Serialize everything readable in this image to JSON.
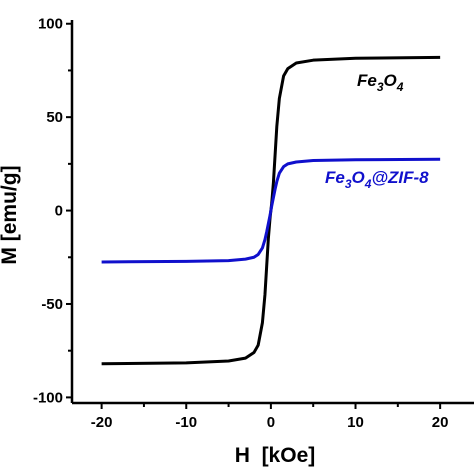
{
  "chart_data": {
    "type": "line",
    "xlabel": "H  [kOe]",
    "ylabel": "M [emu/g]",
    "xlim": [
      -23.5,
      24
    ],
    "ylim": [
      -103,
      102
    ],
    "xticks": [
      -20,
      -10,
      0,
      10,
      20
    ],
    "yticks": [
      -100,
      -50,
      0,
      50,
      100
    ],
    "xtick_labels": [
      "-20",
      "-10",
      "0",
      "10",
      "20"
    ],
    "ytick_labels": [
      "-100",
      "-50",
      "0",
      "50",
      "100"
    ],
    "grid": false,
    "series": [
      {
        "name": "Fe3O4",
        "color": "#000000",
        "x": [
          -20,
          -10,
          -5,
          -3,
          -2,
          -1.5,
          -1,
          -0.7,
          -0.5,
          -0.3,
          -0.1,
          0,
          0.1,
          0.3,
          0.5,
          0.7,
          1,
          1.5,
          2,
          3,
          5,
          10,
          20
        ],
        "y": [
          -82,
          -81.5,
          -80.5,
          -79,
          -76,
          -72,
          -60,
          -45,
          -30,
          -15,
          -4,
          0,
          4,
          15,
          30,
          45,
          60,
          72,
          76,
          79,
          80.5,
          81.5,
          82
        ]
      },
      {
        "name": "Fe3O4@ZIF-8",
        "color": "#1010cc",
        "x": [
          -20,
          -10,
          -5,
          -3,
          -2,
          -1.5,
          -1,
          -0.7,
          -0.5,
          -0.3,
          -0.1,
          0,
          0.1,
          0.3,
          0.5,
          0.7,
          1,
          1.5,
          2,
          3,
          5,
          10,
          20
        ],
        "y": [
          -27.5,
          -27.2,
          -26.8,
          -26,
          -25,
          -23.5,
          -20,
          -15.5,
          -11.5,
          -7,
          -2.5,
          0,
          2.5,
          7,
          11.5,
          15.5,
          20,
          23.5,
          25,
          26,
          26.8,
          27.2,
          27.5
        ]
      }
    ],
    "annotations": [
      {
        "series": 0,
        "text_main": "Fe",
        "sub1": "3",
        "mid": "O",
        "sub2": "4",
        "rest": ""
      },
      {
        "series": 1,
        "text_main": "Fe",
        "sub1": "3",
        "mid": "O",
        "sub2": "4",
        "rest": "@ZIF-8"
      }
    ]
  }
}
